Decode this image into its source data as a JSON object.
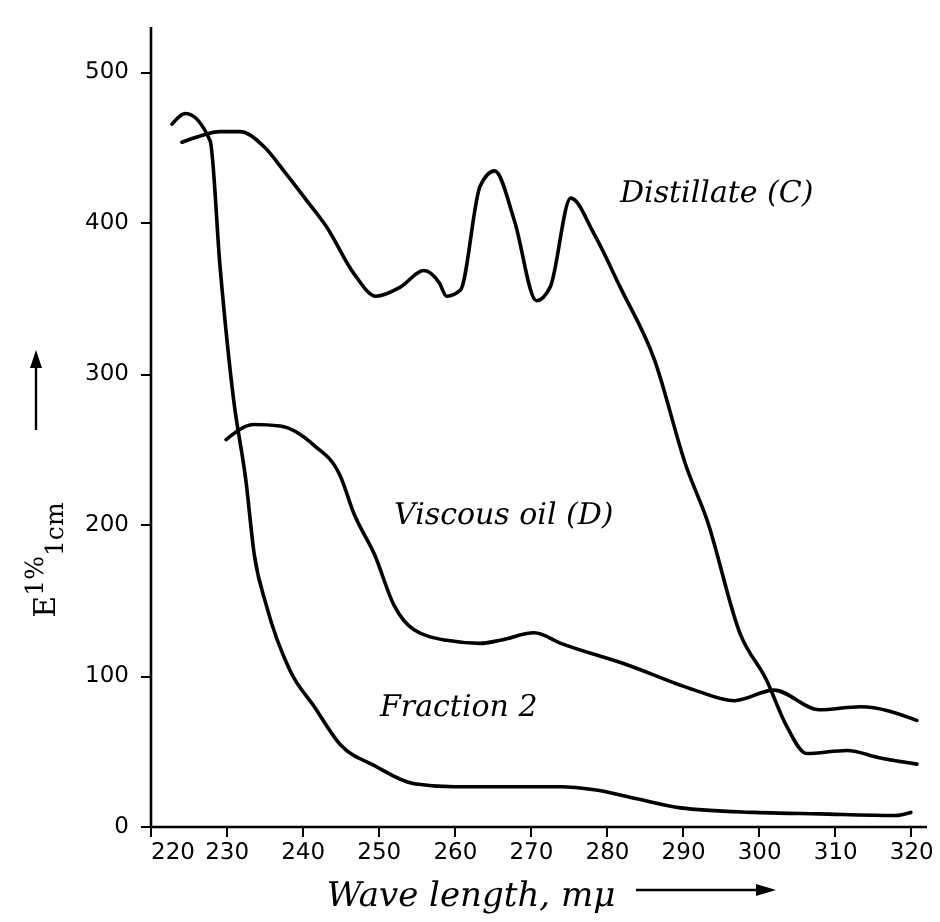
{
  "chart_data": {
    "type": "line",
    "xlabel": "Wave length, mμ",
    "ylabel": "E$^{1%}$$_{1cm}$",
    "xlim": [
      220,
      322
    ],
    "ylim": [
      0,
      530
    ],
    "xticks": [
      220,
      230,
      240,
      250,
      260,
      270,
      280,
      290,
      300,
      310,
      320
    ],
    "yticks": [
      0,
      100,
      200,
      300,
      400,
      500
    ],
    "series": [
      {
        "name": "Distillate (C)",
        "color": "#000000",
        "x": [
          224.2,
          226.5,
          229.2,
          231.8,
          235,
          237.9,
          240.5,
          243.2,
          246.8,
          249.7,
          252.9,
          256,
          258,
          259,
          260.8,
          263.4,
          265.3,
          267.9,
          270.8,
          272.6,
          275.3,
          278.4,
          281.8,
          286.3,
          290.5,
          293.2,
          297.6,
          301,
          303.7,
          306.3,
          311.6,
          316,
          320.8
        ],
        "values": [
          453,
          457,
          460,
          460,
          450,
          432,
          415,
          397,
          366,
          351,
          357,
          368,
          360,
          351,
          355,
          424,
          434,
          401,
          348,
          357,
          416,
          392,
          357,
          309,
          238,
          203,
          127,
          97,
          66,
          48,
          50,
          45,
          41
        ]
      },
      {
        "name": "Viscous oil (D)",
        "color": "#000000",
        "x": [
          230,
          233.7,
          237.1,
          241.6,
          245,
          246.8,
          249.5,
          252.1,
          254.7,
          259,
          263.4,
          266,
          270.5,
          274,
          282.6,
          291.6,
          296.8,
          302,
          308,
          313.4,
          320.8
        ],
        "values": [
          256,
          266,
          265,
          252,
          232,
          207,
          180,
          146,
          130,
          123,
          121,
          123,
          128,
          121,
          107,
          90,
          83,
          90,
          77,
          79,
          70
        ]
      },
      {
        "name": "Fraction 2",
        "color": "#000000",
        "x": [
          222.9,
          224.7,
          227.9,
          229.2,
          231,
          232.6,
          233.7,
          235.3,
          238.4,
          241.6,
          245,
          249.5,
          254.7,
          260,
          267,
          274,
          278.4,
          284,
          289.7,
          299.5,
          308,
          318,
          320
        ],
        "values": [
          465,
          472,
          454,
          371,
          282,
          229,
          180,
          146,
          103,
          79,
          54,
          40,
          28,
          26,
          26,
          26,
          24,
          18,
          12,
          9,
          8,
          7,
          9
        ]
      }
    ]
  }
}
